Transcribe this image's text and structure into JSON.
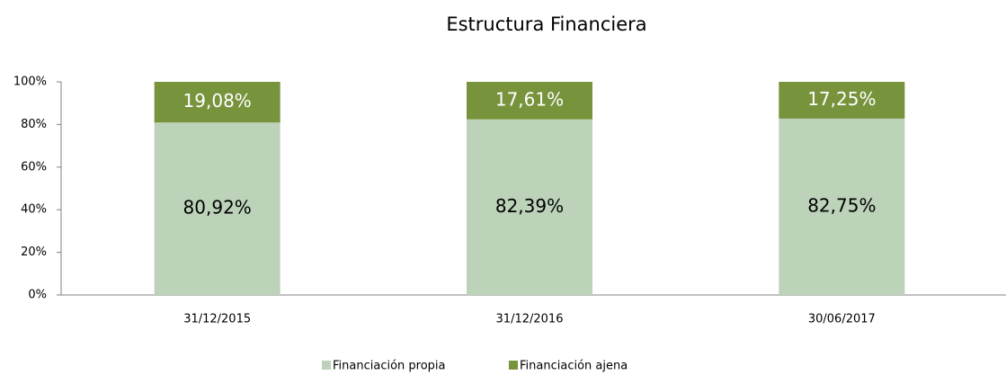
{
  "chart_data": {
    "type": "stacked_bar",
    "title": "Estructura Financiera",
    "categories": [
      "31/12/2015",
      "31/12/2016",
      "30/06/2017"
    ],
    "series": [
      {
        "name": "Financiación propia",
        "color": "#bcd3b9",
        "values": [
          80.92,
          82.39,
          82.75
        ],
        "value_labels": [
          "80,92%",
          "82,39%",
          "82,75%"
        ]
      },
      {
        "name": "Financiación ajena",
        "color": "#77933c",
        "values": [
          19.08,
          17.61,
          17.25
        ],
        "value_labels": [
          "19,08%",
          "17,61%",
          "17,25%"
        ]
      }
    ],
    "ylim": [
      0,
      100
    ],
    "yticks": [
      {
        "value": 0,
        "label": "0%"
      },
      {
        "value": 20,
        "label": "20%"
      },
      {
        "value": 40,
        "label": "40%"
      },
      {
        "value": 60,
        "label": "60%"
      },
      {
        "value": 80,
        "label": "80%"
      },
      {
        "value": 100,
        "label": "100%"
      }
    ],
    "grid": false,
    "legend": "bottom"
  }
}
